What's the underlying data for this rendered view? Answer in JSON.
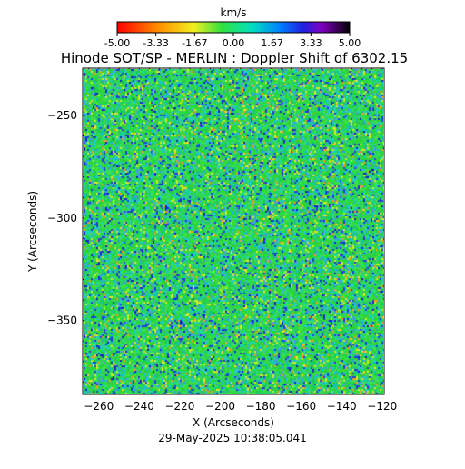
{
  "chart_data": {
    "type": "heatmap",
    "title": "Hinode SOT/SP - MERLIN : Doppler Shift of 6302.15",
    "xlabel": "X (Arcseconds)",
    "ylabel": "Y (Arcseconds)",
    "xlim": [
      -268,
      -119
    ],
    "ylim": [
      -386,
      -227
    ],
    "xticks": [
      -260,
      -240,
      -220,
      -200,
      -180,
      -160,
      -140,
      -120
    ],
    "yticks": [
      -250,
      -300,
      -350
    ],
    "timestamp": "29-May-2025 10:38:05.041",
    "colorbar": {
      "label": "km/s",
      "min": -5.0,
      "max": 5.0,
      "ticks": [
        "-5.00",
        "-3.33",
        "-1.67",
        "0.00",
        "1.67",
        "3.33",
        "5.00"
      ],
      "colormap": "rainbow (red at -5.00 through yellow, green, cyan, blue, violet, to black at 5.00)"
    },
    "field": {
      "dominant_value_kms": 0.8,
      "description_colors": [
        "#22dd44",
        "#00d8b0",
        "#40a0e8",
        "#2040e0",
        "#e8e830",
        "#ff9020"
      ]
    }
  },
  "colors": {
    "green": "#33dd44",
    "cyan": "#22d0c8",
    "blue": "#2233dd",
    "yellow": "#e0e630"
  }
}
